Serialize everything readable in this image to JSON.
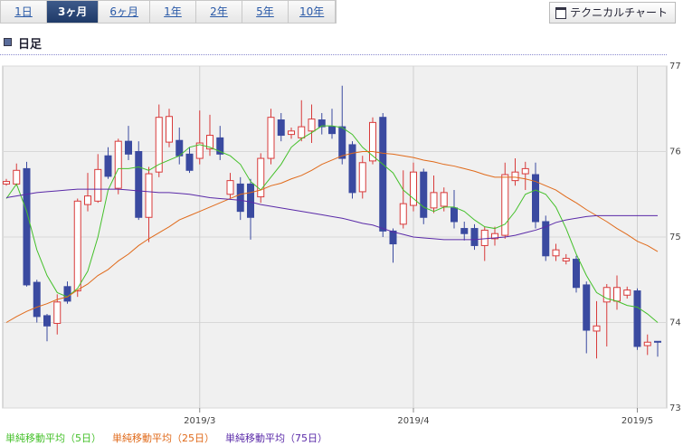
{
  "tabs": [
    "1日",
    "3ヶ月",
    "6ヶ月",
    "1年",
    "2年",
    "5年",
    "10年"
  ],
  "active_tab": 1,
  "button": "テクニカルチャート",
  "chart_data": {
    "type": "candlestick",
    "title": "日足",
    "categories": [
      null,
      null,
      null,
      null,
      null,
      null,
      null,
      null,
      null,
      null,
      null,
      null,
      null,
      null,
      null,
      null,
      null,
      null,
      null,
      "2019/3",
      null,
      null,
      null,
      null,
      null,
      null,
      null,
      null,
      null,
      null,
      null,
      null,
      null,
      null,
      null,
      null,
      null,
      null,
      null,
      null,
      "2019/4",
      null,
      null,
      null,
      null,
      null,
      null,
      null,
      null,
      null,
      null,
      null,
      null,
      null,
      null,
      null,
      null,
      null,
      null,
      null,
      null,
      null,
      "2019/5",
      null,
      null
    ],
    "open": [
      75.62,
      75.62,
      75.8,
      74.47,
      74.08,
      73.99,
      74.42,
      74.37,
      75.38,
      75.42,
      75.95,
      75.57,
      76.12,
      76.0,
      75.23,
      75.76,
      76.11,
      76.13,
      75.97,
      75.92,
      76.03,
      76.16,
      75.5,
      75.62,
      75.62,
      75.47,
      75.92,
      76.37,
      76.2,
      76.16,
      76.24,
      76.37,
      76.29,
      76.29,
      76.08,
      75.53,
      75.89,
      76.4,
      75.07,
      75.15,
      75.37,
      75.76,
      75.34,
      75.36,
      75.34,
      75.1,
      75.1,
      74.9,
      74.98,
      75.02,
      75.66,
      75.74,
      75.73,
      75.18,
      74.78,
      74.72,
      74.74,
      74.44,
      73.9,
      74.24,
      74.25,
      74.32,
      74.37,
      73.73,
      73.78
    ],
    "high": [
      75.68,
      75.86,
      75.88,
      74.5,
      74.1,
      74.33,
      74.48,
      75.45,
      75.75,
      75.97,
      76.05,
      76.15,
      76.3,
      76.12,
      75.82,
      76.55,
      76.5,
      76.28,
      76.05,
      76.48,
      76.43,
      76.3,
      75.75,
      75.7,
      75.68,
      75.98,
      76.5,
      76.45,
      76.28,
      76.6,
      76.55,
      76.45,
      76.5,
      76.77,
      76.12,
      75.95,
      76.4,
      76.45,
      75.1,
      75.78,
      75.87,
      75.8,
      75.72,
      75.58,
      75.55,
      75.18,
      75.15,
      75.12,
      75.12,
      75.87,
      75.92,
      75.88,
      75.87,
      75.25,
      74.92,
      74.8,
      74.78,
      74.48,
      74.25,
      74.45,
      74.55,
      74.42,
      74.4,
      73.86,
      73.78
    ],
    "low": [
      75.6,
      75.6,
      74.42,
      74.0,
      73.78,
      73.86,
      74.22,
      74.3,
      75.3,
      75.4,
      75.68,
      75.5,
      75.9,
      75.2,
      74.94,
      75.7,
      76.05,
      75.85,
      75.75,
      75.85,
      75.95,
      75.9,
      75.45,
      75.2,
      74.97,
      75.4,
      75.85,
      76.12,
      76.15,
      76.12,
      76.1,
      76.2,
      76.15,
      75.85,
      75.45,
      75.45,
      75.85,
      75.0,
      74.7,
      75.1,
      75.3,
      75.15,
      75.28,
      75.3,
      75.1,
      74.96,
      74.85,
      74.72,
      74.9,
      74.98,
      75.6,
      75.55,
      75.1,
      74.72,
      74.72,
      74.68,
      74.35,
      73.64,
      73.58,
      73.72,
      74.15,
      74.28,
      73.68,
      73.62,
      73.6
    ],
    "close": [
      75.65,
      75.78,
      74.44,
      74.07,
      73.96,
      74.24,
      74.25,
      75.42,
      75.48,
      75.79,
      75.71,
      76.12,
      75.97,
      75.23,
      75.74,
      76.4,
      76.41,
      75.95,
      75.78,
      76.1,
      76.19,
      75.97,
      75.66,
      75.3,
      75.23,
      75.92,
      76.4,
      76.19,
      76.24,
      76.29,
      76.38,
      76.29,
      76.21,
      75.92,
      75.52,
      75.87,
      76.34,
      75.07,
      74.92,
      75.39,
      75.76,
      75.23,
      75.52,
      75.52,
      75.18,
      75.04,
      74.9,
      75.08,
      75.04,
      75.73,
      75.76,
      75.8,
      75.18,
      74.78,
      74.85,
      74.75,
      74.41,
      73.91,
      73.96,
      74.41,
      74.41,
      74.38,
      73.72,
      73.77,
      73.77
    ],
    "up_color": "#d83a3a",
    "down_color": "#3a4aa0",
    "series": [
      {
        "name": "単純移動平均（5日）",
        "color": "#44c02a",
        "values": [
          75.45,
          75.62,
          75.3,
          74.85,
          74.55,
          74.35,
          74.3,
          74.4,
          74.6,
          75.0,
          75.55,
          75.8,
          75.8,
          75.82,
          75.78,
          75.85,
          75.9,
          75.95,
          76.05,
          76.08,
          76.05,
          76.0,
          75.95,
          75.85,
          75.65,
          75.55,
          75.7,
          75.85,
          76.05,
          76.15,
          76.22,
          76.3,
          76.3,
          76.28,
          76.2,
          76.05,
          75.95,
          75.85,
          75.75,
          75.55,
          75.45,
          75.35,
          75.3,
          75.35,
          75.35,
          75.3,
          75.2,
          75.12,
          75.1,
          75.15,
          75.3,
          75.5,
          75.55,
          75.5,
          75.35,
          75.1,
          74.8,
          74.55,
          74.35,
          74.28,
          74.25,
          74.2,
          74.18,
          74.1,
          74.0
        ]
      },
      {
        "name": "単純移動平均（25日）",
        "color": "#e06a1a",
        "values": [
          74.0,
          74.07,
          74.13,
          74.18,
          74.22,
          74.27,
          74.3,
          74.38,
          74.45,
          74.55,
          74.62,
          74.72,
          74.8,
          74.9,
          74.98,
          75.05,
          75.12,
          75.2,
          75.25,
          75.3,
          75.35,
          75.4,
          75.45,
          75.5,
          75.52,
          75.55,
          75.6,
          75.63,
          75.68,
          75.72,
          75.78,
          75.85,
          75.9,
          75.95,
          75.98,
          76.0,
          76.0,
          75.98,
          75.97,
          75.95,
          75.93,
          75.9,
          75.88,
          75.85,
          75.83,
          75.8,
          75.77,
          75.73,
          75.7,
          75.7,
          75.7,
          75.68,
          75.65,
          75.6,
          75.55,
          75.47,
          75.4,
          75.32,
          75.25,
          75.18,
          75.1,
          75.03,
          74.95,
          74.9,
          74.83
        ]
      },
      {
        "name": "単純移動平均（75日）",
        "color": "#5a2aa8",
        "values": [
          75.46,
          75.48,
          75.5,
          75.52,
          75.53,
          75.54,
          75.55,
          75.56,
          75.56,
          75.56,
          75.56,
          75.56,
          75.55,
          75.54,
          75.53,
          75.52,
          75.52,
          75.51,
          75.5,
          75.48,
          75.46,
          75.45,
          75.44,
          75.43,
          75.41,
          75.38,
          75.36,
          75.34,
          75.32,
          75.3,
          75.28,
          75.26,
          75.24,
          75.22,
          75.19,
          75.16,
          75.14,
          75.1,
          75.06,
          75.03,
          75.0,
          74.99,
          74.98,
          74.97,
          74.97,
          74.97,
          74.97,
          74.98,
          74.99,
          75.0,
          75.02,
          75.05,
          75.08,
          75.12,
          75.17,
          75.2,
          75.22,
          75.24,
          75.25,
          75.25,
          75.25,
          75.25,
          75.25,
          75.25,
          75.25
        ]
      }
    ],
    "ylim": [
      73,
      77
    ],
    "yticks": [
      73,
      74,
      75,
      76,
      77
    ],
    "grid": true
  }
}
